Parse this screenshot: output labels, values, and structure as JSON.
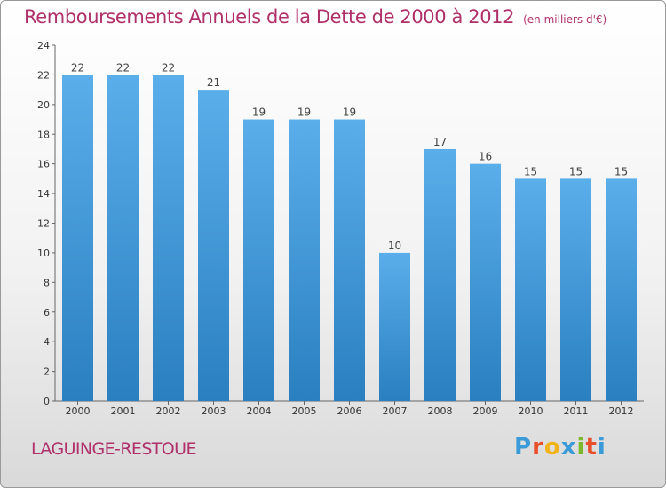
{
  "title": "Remboursements Annuels de la Dette de 2000 à 2012",
  "unit": "(en milliers d'€)",
  "commune": "LAGUINGE-RESTOUE",
  "logo": {
    "letters": [
      "P",
      "r",
      "o",
      "x",
      "i",
      "t",
      "i"
    ],
    "colors": [
      "#3b9ad8",
      "#e8502c",
      "#f2b21a",
      "#3b9ad8",
      "#7ab929",
      "#e8502c",
      "#3b9ad8"
    ]
  },
  "colors": {
    "bar_light": "#5aaeea",
    "bar_dark": "#2a7fc0",
    "title": "#b0306a"
  },
  "chart_data": {
    "type": "bar",
    "categories": [
      "2000",
      "2001",
      "2002",
      "2003",
      "2004",
      "2005",
      "2006",
      "2007",
      "2008",
      "2009",
      "2010",
      "2011",
      "2012"
    ],
    "values": [
      22,
      22,
      22,
      21,
      19,
      19,
      19,
      10,
      17,
      16,
      15,
      15,
      15
    ],
    "ylim": [
      0,
      24
    ],
    "yticks": [
      0,
      2,
      4,
      6,
      8,
      10,
      12,
      14,
      16,
      18,
      20,
      22,
      24
    ],
    "grid": false,
    "legend": "none"
  }
}
